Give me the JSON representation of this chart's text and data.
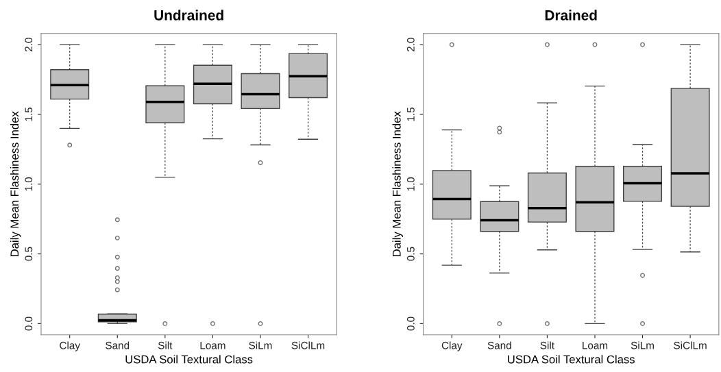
{
  "chart_data": [
    {
      "type": "box",
      "title": "Undrained",
      "xlabel": "USDA Soil Textural Class",
      "ylabel": "Daily Mean Flashiness Index",
      "categories": [
        "Clay",
        "Sand",
        "Silt",
        "Loam",
        "SiLm",
        "SiClLm"
      ],
      "ylim": [
        -0.08,
        2.08
      ],
      "yticks": [
        {
          "value": 0,
          "label": "0.0"
        },
        {
          "value": 0.5,
          "label": "0.5"
        },
        {
          "value": 1,
          "label": "1.0"
        },
        {
          "value": 1.5,
          "label": "1.5"
        },
        {
          "value": 2,
          "label": "2.0"
        }
      ],
      "grid": false,
      "marker": "circle",
      "color": "#bebebe",
      "boxes": [
        {
          "low": 1.4,
          "q1": 1.61,
          "median": 1.71,
          "q3": 1.82,
          "high": 2.0,
          "outliers": [
            1.28
          ]
        },
        {
          "low": 0.0,
          "q1": 0.013,
          "median": 0.024,
          "q3": 0.068,
          "high": 0.07,
          "outliers": [
            0.745,
            0.614,
            0.477,
            0.396,
            0.329,
            0.301,
            0.243
          ]
        },
        {
          "low": 1.05,
          "q1": 1.44,
          "median": 1.59,
          "q3": 1.705,
          "high": 2.0,
          "outliers": [
            0.0
          ]
        },
        {
          "low": 1.325,
          "q1": 1.576,
          "median": 1.72,
          "q3": 1.852,
          "high": 2.0,
          "outliers": [
            0.0
          ]
        },
        {
          "low": 1.281,
          "q1": 1.542,
          "median": 1.645,
          "q3": 1.792,
          "high": 2.0,
          "outliers": [
            1.154,
            0.0
          ]
        },
        {
          "low": 1.322,
          "q1": 1.62,
          "median": 1.774,
          "q3": 1.935,
          "high": 2.0
        }
      ]
    },
    {
      "type": "box",
      "title": "Drained",
      "xlabel": "USDA Soil Textural Class",
      "ylabel": "Daily Mean Flashiness Index",
      "categories": [
        "Clay",
        "Sand",
        "Silt",
        "Loam",
        "SiLm",
        "SiClLm"
      ],
      "ylim": [
        -0.08,
        2.08
      ],
      "yticks": [
        {
          "value": 0,
          "label": "0.0"
        },
        {
          "value": 0.5,
          "label": "0.5"
        },
        {
          "value": 1,
          "label": "1.0"
        },
        {
          "value": 1.5,
          "label": "1.5"
        },
        {
          "value": 2,
          "label": "2.0"
        }
      ],
      "grid": false,
      "marker": "circle",
      "color": "#bebebe",
      "boxes": [
        {
          "low": 0.419,
          "q1": 0.749,
          "median": 0.893,
          "q3": 1.098,
          "high": 1.389,
          "outliers": [
            2.0
          ]
        },
        {
          "low": 0.363,
          "q1": 0.661,
          "median": 0.741,
          "q3": 0.875,
          "high": 0.988,
          "outliers": [
            1.402,
            1.373,
            0.0
          ]
        },
        {
          "low": 0.529,
          "q1": 0.728,
          "median": 0.828,
          "q3": 1.08,
          "high": 1.583,
          "outliers": [
            2.0,
            0.0
          ]
        },
        {
          "low": 0.0,
          "q1": 0.661,
          "median": 0.87,
          "q3": 1.128,
          "high": 1.703,
          "outliers": [
            2.0
          ]
        },
        {
          "low": 0.532,
          "q1": 0.877,
          "median": 1.006,
          "q3": 1.128,
          "high": 1.284,
          "outliers": [
            2.0,
            0.346,
            0.0
          ]
        },
        {
          "low": 0.514,
          "q1": 0.841,
          "median": 1.077,
          "q3": 1.686,
          "high": 2.0
        }
      ]
    }
  ]
}
